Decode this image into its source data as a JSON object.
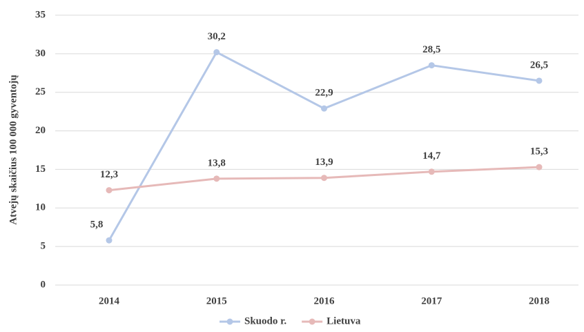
{
  "chart_data": {
    "type": "line",
    "y_label": "Atvejų skaičius 100 000 gyventojų",
    "categories": [
      "2014",
      "2015",
      "2016",
      "2017",
      "2018"
    ],
    "series": [
      {
        "name": "Skuodo r.",
        "color": "#b4c7e7",
        "values": [
          5.8,
          30.2,
          22.9,
          28.5,
          26.5
        ],
        "value_labels": [
          "5,8",
          "30,2",
          "22,9",
          "28,5",
          "26,5"
        ]
      },
      {
        "name": "Lietuva",
        "color": "#e6b9b8",
        "values": [
          12.3,
          13.8,
          13.9,
          14.7,
          15.3
        ],
        "value_labels": [
          "12,3",
          "13,8",
          "13,9",
          "14,7",
          "15,3"
        ]
      }
    ],
    "ylim": [
      0,
      35
    ],
    "yticks": [
      0,
      5,
      10,
      15,
      20,
      25,
      30,
      35
    ],
    "grid": true,
    "legend": "bottom"
  }
}
